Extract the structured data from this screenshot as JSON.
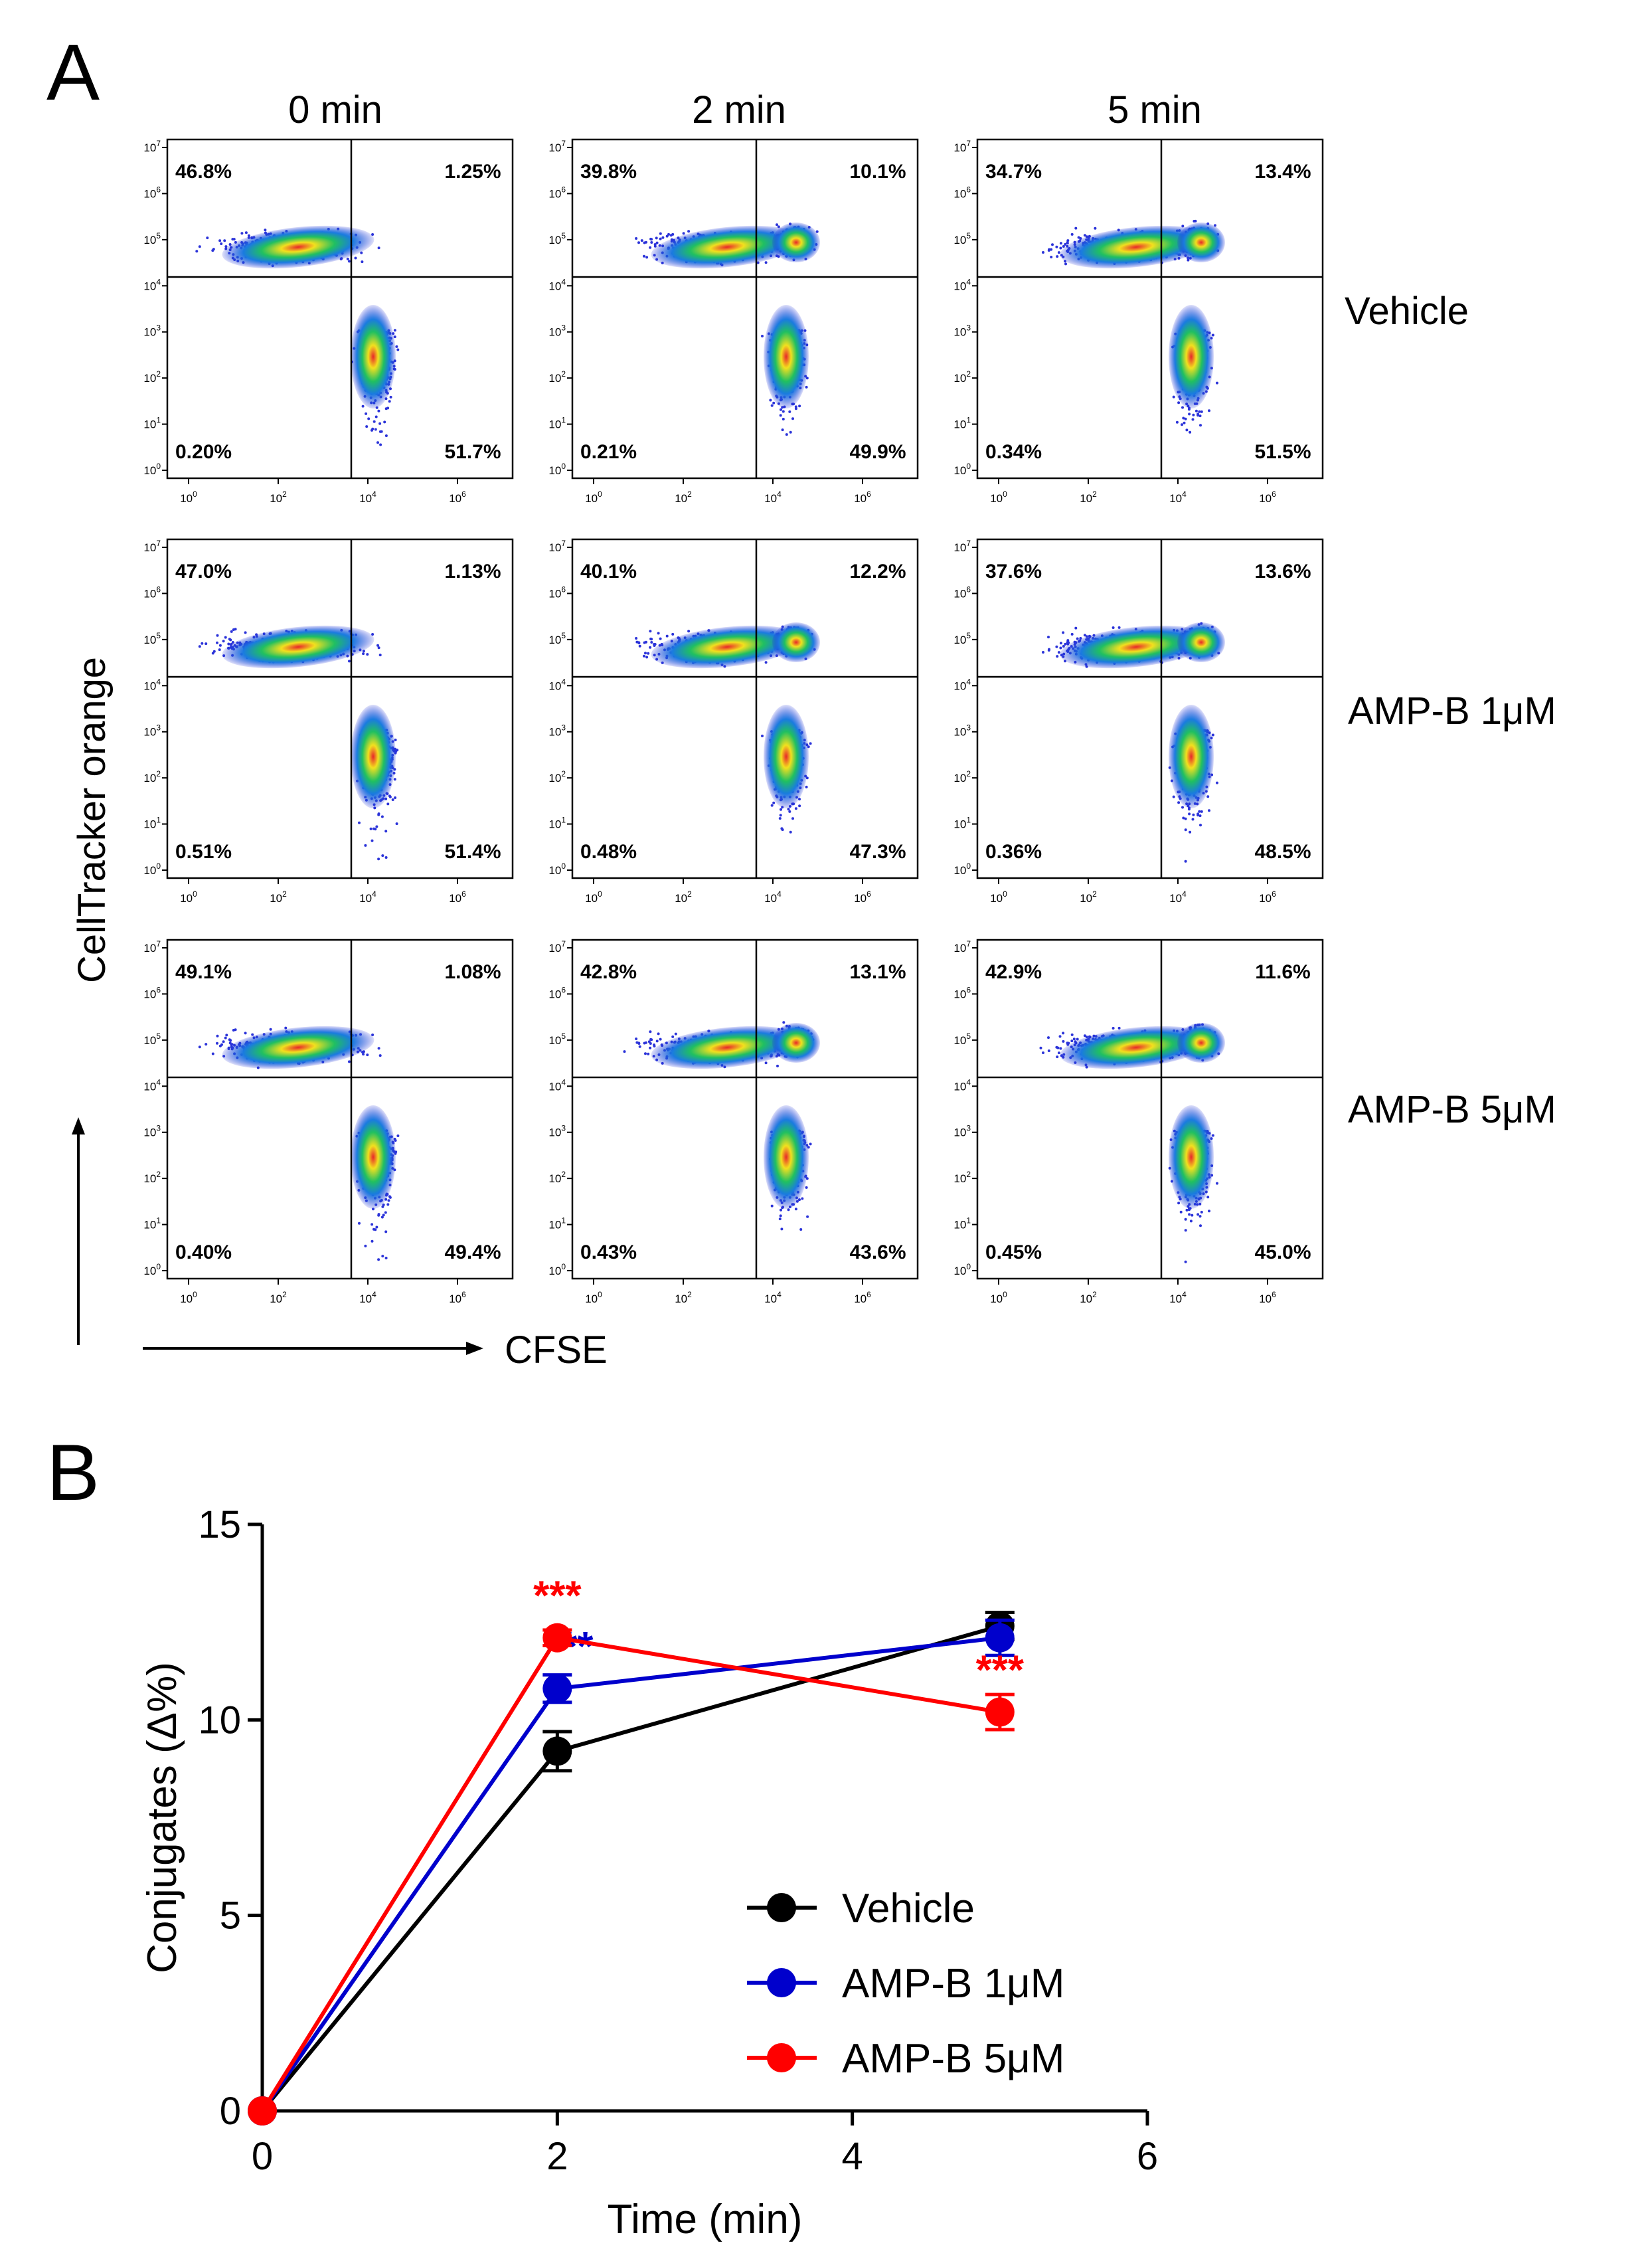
{
  "panel_a": {
    "letter": "A",
    "column_titles": [
      "0 min",
      "2 min",
      "5 min"
    ],
    "row_labels": [
      "Vehicle",
      "AMP-B 1μM",
      "AMP-B 5μM"
    ],
    "y_axis_title": "CellTracker orange",
    "x_axis_title": "CFSE",
    "flow_quadrants": [
      [
        {
          "ul": "46.8%",
          "ur": "1.25%",
          "ll": "0.20%",
          "lr": "51.7%"
        },
        {
          "ul": "39.8%",
          "ur": "10.1%",
          "ll": "0.21%",
          "lr": "49.9%"
        },
        {
          "ul": "34.7%",
          "ur": "13.4%",
          "ll": "0.34%",
          "lr": "51.5%"
        }
      ],
      [
        {
          "ul": "47.0%",
          "ur": "1.13%",
          "ll": "0.51%",
          "lr": "51.4%"
        },
        {
          "ul": "40.1%",
          "ur": "12.2%",
          "ll": "0.48%",
          "lr": "47.3%"
        },
        {
          "ul": "37.6%",
          "ur": "13.6%",
          "ll": "0.36%",
          "lr": "48.5%"
        }
      ],
      [
        {
          "ul": "49.1%",
          "ur": "1.08%",
          "ll": "0.40%",
          "lr": "49.4%"
        },
        {
          "ul": "42.8%",
          "ur": "13.1%",
          "ll": "0.43%",
          "lr": "43.6%"
        },
        {
          "ul": "42.9%",
          "ur": "11.6%",
          "ll": "0.45%",
          "lr": "45.0%"
        }
      ]
    ],
    "axis_exponents": [
      "0",
      "1",
      "2",
      "3",
      "4",
      "5",
      "6",
      "7"
    ],
    "x_tick_exponents": [
      "0",
      "2",
      "4",
      "6"
    ],
    "tick_base": "10"
  },
  "chart_data": {
    "type": "line",
    "panel_letter": "B",
    "title": "",
    "xlabel": "Time (min)",
    "ylabel": "Conjugates (Δ%)",
    "xlim": [
      0,
      6
    ],
    "ylim": [
      0,
      15
    ],
    "xticks": [
      0,
      2,
      4,
      6
    ],
    "yticks": [
      0,
      5,
      10,
      15
    ],
    "legend_position": "lower-right",
    "series": [
      {
        "name": "Vehicle",
        "color": "#000000",
        "x": [
          0,
          2,
          5
        ],
        "y": [
          0,
          9.2,
          12.4
        ],
        "err": [
          0,
          0.5,
          0.35
        ],
        "sig": [
          "",
          "",
          ""
        ]
      },
      {
        "name": "AMP-B 1μM",
        "color": "#0000cc",
        "x": [
          0,
          2,
          5
        ],
        "y": [
          0,
          10.8,
          12.1
        ],
        "err": [
          0,
          0.35,
          0.45
        ],
        "sig": [
          "",
          "**",
          ""
        ]
      },
      {
        "name": "AMP-B 5μM",
        "color": "#ff0000",
        "x": [
          0,
          2,
          5
        ],
        "y": [
          0,
          12.1,
          10.2
        ],
        "err": [
          0,
          0.2,
          0.45
        ],
        "sig": [
          "",
          "***",
          "***"
        ]
      }
    ]
  }
}
